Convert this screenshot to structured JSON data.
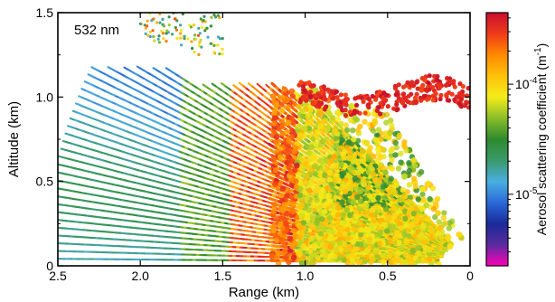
{
  "chart_data": {
    "type": "heatmap",
    "annotation": "532 nm",
    "xlabel": "Range (km)",
    "ylabel": "Altitude (km)",
    "xlim": [
      2.5,
      0
    ],
    "ylim": [
      0,
      1.5
    ],
    "x_ticks": [
      2.5,
      2.0,
      1.5,
      1.0,
      0.5,
      0
    ],
    "x_tick_labels": [
      "2.5",
      "2.0",
      "1.5",
      "1.0",
      "0.5",
      "0"
    ],
    "y_ticks": [
      0,
      0.5,
      1.0,
      1.5
    ],
    "y_tick_labels": [
      "0",
      "0.5",
      "1.0",
      "1.5"
    ],
    "colorbar": {
      "label_text": "Aerosol scattering coefficient (m",
      "label_exponent": "-1",
      "label_close": ")",
      "scale": "log",
      "tick_labels": [
        {
          "base": "10",
          "exp": "-4",
          "value": 0.0001
        },
        {
          "base": "10",
          "exp": "-5",
          "value": 1e-05
        }
      ],
      "colors": [
        "#ff00b4",
        "#5a2ba0",
        "#1a2a9a",
        "#2a6ad8",
        "#4aaee0",
        "#3a9a6a",
        "#2e8a2e",
        "#8abe2a",
        "#f4ec1a",
        "#ffc20a",
        "#ff8a00",
        "#f03a1a",
        "#c8102e"
      ]
    }
  }
}
